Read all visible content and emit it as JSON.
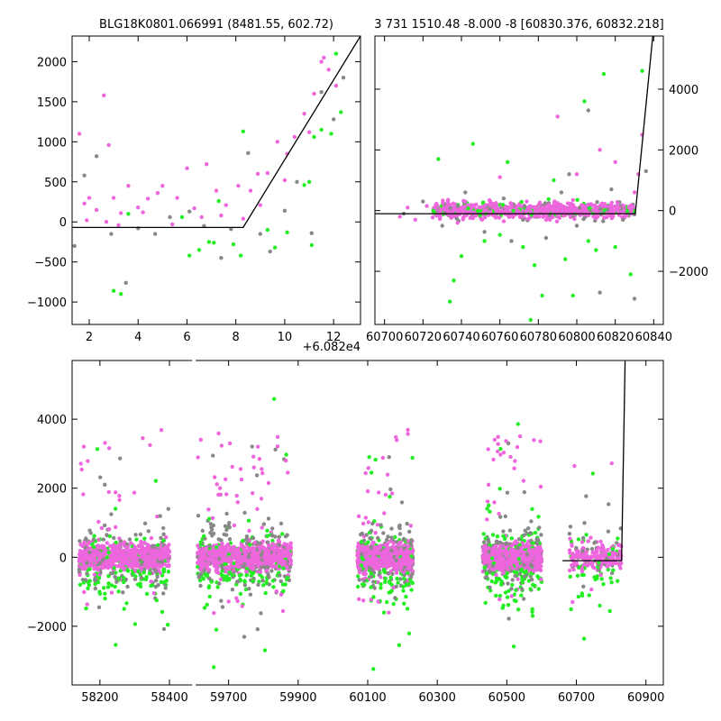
{
  "chart_data": [
    {
      "id": "top-left",
      "type": "scatter",
      "title": "BLG18K0801.066991 (8481.55, 602.72)",
      "x_offset_label": "+6.082e4",
      "xlim": [
        1.3,
        13.1
      ],
      "ylim": [
        -1280,
        2320
      ],
      "xticks": [
        2,
        4,
        6,
        8,
        10,
        12
      ],
      "yticks": [
        -1000,
        -500,
        0,
        500,
        1000,
        1500,
        2000
      ],
      "y_axis_side": "left",
      "model_line": [
        [
          1.3,
          -70
        ],
        [
          8.3,
          -70
        ],
        [
          13.1,
          2320
        ]
      ],
      "series": [
        {
          "color": "#ee66dd",
          "points": [
            [
              1.6,
              1100
            ],
            [
              1.8,
              230
            ],
            [
              2.0,
              300
            ],
            [
              2.3,
              150
            ],
            [
              2.6,
              1580
            ],
            [
              2.8,
              960
            ],
            [
              3.0,
              300
            ],
            [
              3.3,
              110
            ],
            [
              3.6,
              450
            ],
            [
              4.0,
              180
            ],
            [
              4.4,
              290
            ],
            [
              4.8,
              360
            ],
            [
              5.0,
              450
            ],
            [
              5.6,
              300
            ],
            [
              6.0,
              670
            ],
            [
              6.3,
              170
            ],
            [
              6.8,
              720
            ],
            [
              7.2,
              390
            ],
            [
              7.6,
              210
            ],
            [
              8.1,
              450
            ],
            [
              8.6,
              390
            ],
            [
              8.9,
              600
            ],
            [
              9.3,
              610
            ],
            [
              9.7,
              1000
            ],
            [
              10.1,
              850
            ],
            [
              10.4,
              1060
            ],
            [
              10.8,
              1350
            ],
            [
              11.2,
              1600
            ],
            [
              11.5,
              2000
            ],
            [
              11.8,
              1900
            ],
            [
              12.1,
              1700
            ],
            [
              1.9,
              20
            ],
            [
              2.7,
              0
            ],
            [
              3.2,
              -40
            ],
            [
              4.2,
              120
            ],
            [
              5.4,
              -30
            ],
            [
              6.6,
              60
            ],
            [
              7.4,
              80
            ],
            [
              8.3,
              40
            ],
            [
              9.0,
              210
            ],
            [
              10.0,
              520
            ],
            [
              11.0,
              1120
            ],
            [
              11.6,
              2050
            ]
          ]
        },
        {
          "color": "#22ee22",
          "points": [
            [
              3.0,
              -860
            ],
            [
              3.3,
              -900
            ],
            [
              3.6,
              100
            ],
            [
              5.8,
              60
            ],
            [
              6.1,
              -420
            ],
            [
              6.5,
              -350
            ],
            [
              6.9,
              -250
            ],
            [
              7.3,
              260
            ],
            [
              7.9,
              -280
            ],
            [
              8.2,
              -420
            ],
            [
              8.3,
              1130
            ],
            [
              9.3,
              -100
            ],
            [
              9.6,
              -320
            ],
            [
              10.1,
              -130
            ],
            [
              10.8,
              460
            ],
            [
              11.0,
              500
            ],
            [
              11.2,
              1060
            ],
            [
              11.5,
              1150
            ],
            [
              11.9,
              1100
            ],
            [
              12.1,
              2100
            ],
            [
              12.3,
              1370
            ],
            [
              11.1,
              -290
            ],
            [
              7.1,
              -260
            ]
          ]
        },
        {
          "color": "#888888",
          "points": [
            [
              1.4,
              -300
            ],
            [
              1.8,
              580
            ],
            [
              2.3,
              820
            ],
            [
              2.9,
              -150
            ],
            [
              3.5,
              -760
            ],
            [
              4.0,
              -80
            ],
            [
              4.7,
              -150
            ],
            [
              5.3,
              60
            ],
            [
              6.1,
              130
            ],
            [
              6.7,
              -50
            ],
            [
              7.4,
              -450
            ],
            [
              7.8,
              -90
            ],
            [
              8.5,
              860
            ],
            [
              9.0,
              -150
            ],
            [
              9.4,
              -370
            ],
            [
              10.0,
              140
            ],
            [
              10.5,
              500
            ],
            [
              11.1,
              -140
            ],
            [
              11.5,
              1620
            ],
            [
              12.0,
              1280
            ],
            [
              12.4,
              1800
            ]
          ]
        }
      ]
    },
    {
      "id": "top-right",
      "type": "scatter",
      "title": "3 731 1510.48 -8.000 -8 [60830.376, 60832.218]",
      "xlim": [
        60695,
        60845
      ],
      "ylim": [
        -3750,
        5750
      ],
      "xticks": [
        60700,
        60720,
        60740,
        60760,
        60780,
        60800,
        60820,
        60840
      ],
      "yticks": [
        -2000,
        0,
        2000,
        4000
      ],
      "y_axis_side": "right",
      "model_line": [
        [
          60695,
          -100
        ],
        [
          60830.4,
          -100
        ],
        [
          60839.5,
          5750
        ]
      ],
      "series": [
        {
          "color": "#ee66dd",
          "points": [
            [
              60708,
              -200
            ],
            [
              60712,
              100
            ],
            [
              60716,
              -300
            ],
            [
              60722,
              150
            ],
            [
              60728,
              -100
            ],
            [
              60734,
              200
            ],
            [
              60738,
              -400
            ],
            [
              60742,
              300
            ],
            [
              60746,
              -250
            ],
            [
              60750,
              100
            ],
            [
              60754,
              -150
            ],
            [
              60758,
              250
            ],
            [
              60762,
              -350
            ],
            [
              60766,
              200
            ],
            [
              60770,
              -100
            ],
            [
              60774,
              300
            ],
            [
              60778,
              -200
            ],
            [
              60782,
              100
            ],
            [
              60786,
              -300
            ],
            [
              60790,
              250
            ],
            [
              60794,
              -150
            ],
            [
              60798,
              350
            ],
            [
              60802,
              -100
            ],
            [
              60806,
              200
            ],
            [
              60810,
              -250
            ],
            [
              60814,
              150
            ],
            [
              60818,
              -50
            ],
            [
              60822,
              100
            ],
            [
              60826,
              -150
            ],
            [
              60830,
              600
            ],
            [
              60832,
              1200
            ],
            [
              60834,
              2500
            ],
            [
              60790,
              3100
            ],
            [
              60800,
              1200
            ],
            [
              60760,
              1100
            ],
            [
              60812,
              2000
            ],
            [
              60820,
              1600
            ],
            [
              60745,
              -50
            ],
            [
              60785,
              -60
            ],
            [
              60775,
              80
            ]
          ]
        },
        {
          "color": "#22ee22",
          "points": [
            [
              60728,
              1700
            ],
            [
              60736,
              -2300
            ],
            [
              60740,
              -1500
            ],
            [
              60746,
              2200
            ],
            [
              60752,
              -1000
            ],
            [
              60760,
              -800
            ],
            [
              60764,
              1600
            ],
            [
              60772,
              -1200
            ],
            [
              60778,
              -1800
            ],
            [
              60782,
              -2800
            ],
            [
              60788,
              1000
            ],
            [
              60794,
              -1600
            ],
            [
              60798,
              -2800
            ],
            [
              60804,
              3600
            ],
            [
              60810,
              -1300
            ],
            [
              60814,
              4500
            ],
            [
              60820,
              -1200
            ],
            [
              60828,
              -2100
            ],
            [
              60834,
              4600
            ],
            [
              60734,
              -3000
            ],
            [
              60776,
              -3600
            ],
            [
              60806,
              -1000
            ]
          ]
        },
        {
          "color": "#888888",
          "points": [
            [
              60710,
              -100
            ],
            [
              60720,
              300
            ],
            [
              60730,
              -500
            ],
            [
              60742,
              600
            ],
            [
              60752,
              -700
            ],
            [
              60762,
              400
            ],
            [
              60772,
              -300
            ],
            [
              60784,
              -900
            ],
            [
              60792,
              600
            ],
            [
              60800,
              -500
            ],
            [
              60806,
              3300
            ],
            [
              60812,
              -2700
            ],
            [
              60818,
              700
            ],
            [
              60824,
              -300
            ],
            [
              60830,
              -2900
            ],
            [
              60836,
              1300
            ],
            [
              60766,
              -1000
            ],
            [
              60796,
              1200
            ]
          ]
        }
      ]
    },
    {
      "id": "bottom",
      "type": "scatter",
      "xlim": [
        58120,
        60950
      ],
      "ylim": [
        -3700,
        5700
      ],
      "xticks": [
        58200,
        58400,
        59700,
        59900,
        60100,
        60300,
        60500,
        60700,
        60900
      ],
      "yticks": [
        -2000,
        0,
        2000,
        4000
      ],
      "y_axis_side": "left",
      "broken_axis": {
        "from": 58470,
        "to": 59600
      },
      "model_line": [
        [
          60660,
          -100
        ],
        [
          60830,
          -100
        ],
        [
          60840,
          5700
        ]
      ],
      "seasons": [
        [
          58140,
          58400
        ],
        [
          59610,
          59880
        ],
        [
          60070,
          60230
        ],
        [
          60430,
          60600
        ],
        [
          60680,
          60830
        ]
      ],
      "series_colors": [
        "#ee66dd",
        "#22ee22",
        "#888888"
      ]
    }
  ]
}
